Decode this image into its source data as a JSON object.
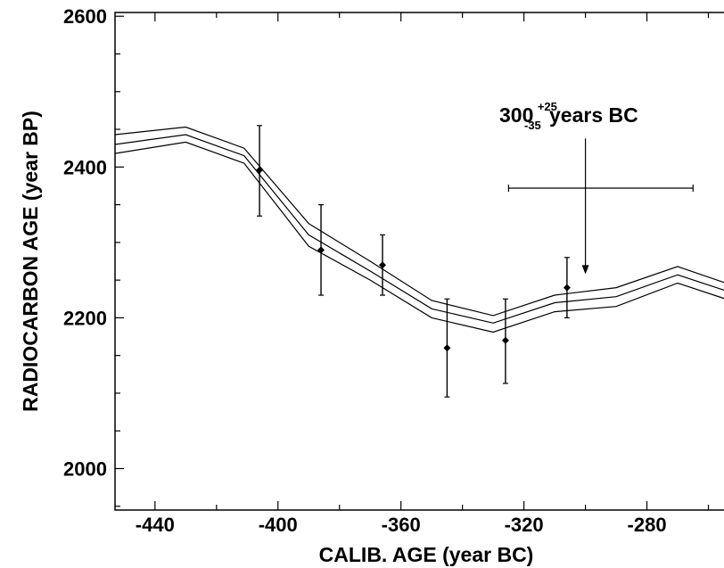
{
  "chart_data": {
    "type": "line",
    "xlabel": "CALIB. AGE (year BC)",
    "ylabel": "RADIOCARBON AGE (year BP)",
    "xlim": [
      -453,
      -250
    ],
    "ylim": [
      1945,
      2605
    ],
    "x_ticks": [
      -440,
      -400,
      -360,
      -320,
      -280
    ],
    "x_tick_labels": [
      "-440",
      "-400",
      "-360",
      "-320",
      "-280"
    ],
    "y_ticks": [
      2000,
      2200,
      2400,
      2600
    ],
    "y_tick_labels": [
      "2000",
      "2200",
      "2400",
      "2600"
    ],
    "grid": false,
    "series": [
      {
        "role": "upper",
        "x": [
          -453,
          -430,
          -411,
          -390,
          -370,
          -350,
          -330,
          -310,
          -290,
          -270,
          -250
        ],
        "y": [
          2443,
          2453,
          2425,
          2325,
          2275,
          2223,
          2203,
          2230,
          2240,
          2268,
          2240
        ]
      },
      {
        "role": "center",
        "x": [
          -453,
          -430,
          -411,
          -390,
          -370,
          -350,
          -330,
          -310,
          -290,
          -270,
          -250
        ],
        "y": [
          2430,
          2443,
          2415,
          2310,
          2262,
          2212,
          2193,
          2220,
          2228,
          2257,
          2230
        ]
      },
      {
        "role": "lower",
        "x": [
          -453,
          -430,
          -411,
          -390,
          -370,
          -350,
          -330,
          -310,
          -290,
          -270,
          -250
        ],
        "y": [
          2418,
          2433,
          2405,
          2295,
          2250,
          2200,
          2181,
          2208,
          2215,
          2246,
          2219
        ]
      }
    ],
    "measurements": [
      {
        "x": -406,
        "y": 2396,
        "low": 2335,
        "high": 2455
      },
      {
        "x": -386,
        "y": 2290,
        "low": 2230,
        "high": 2350
      },
      {
        "x": -366,
        "y": 2270,
        "low": 2230,
        "high": 2310
      },
      {
        "x": -345,
        "y": 2160,
        "low": 2095,
        "high": 2225
      },
      {
        "x": -326,
        "y": 2170,
        "low": 2113,
        "high": 2225
      },
      {
        "x": -306,
        "y": 2240,
        "low": 2200,
        "high": 2280
      }
    ],
    "result_cross": {
      "x": -300,
      "y": 2372,
      "x_low": -325,
      "x_high": -265
    },
    "result_arrow": {
      "x": -300,
      "y_from": 2438,
      "y_to": 2258
    },
    "annotation": {
      "base": "300",
      "sup": "+25",
      "sub": "-35",
      "suffix": "years BC"
    }
  }
}
